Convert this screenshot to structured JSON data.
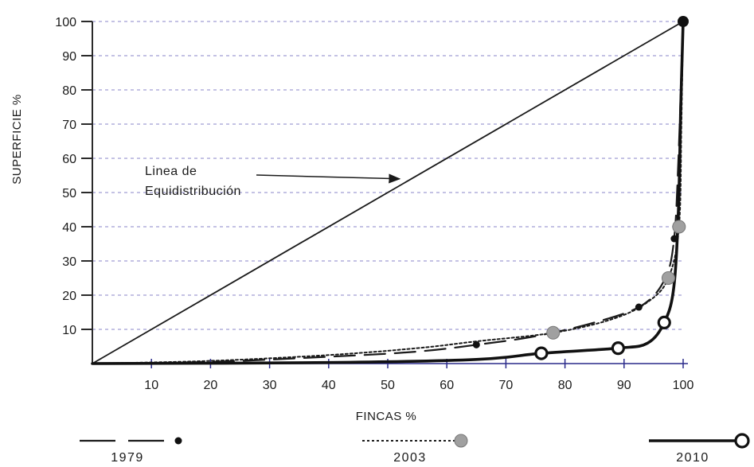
{
  "chart_data": {
    "type": "line",
    "title": "",
    "xlabel": "FINCAS %",
    "ylabel": "SUPERFICIE %",
    "xlim": [
      0,
      100
    ],
    "ylim": [
      0,
      100
    ],
    "x_ticks": [
      10,
      20,
      30,
      40,
      50,
      60,
      70,
      80,
      90,
      100
    ],
    "y_ticks": [
      10,
      20,
      30,
      40,
      50,
      60,
      70,
      80,
      90,
      100
    ],
    "grid": "horizontal dashed",
    "legend_position": "bottom",
    "annotation": {
      "lines": [
        "Linea de",
        "Equidistribución"
      ],
      "arrow_target": [
        52,
        54
      ]
    },
    "equidistribution": {
      "x": [
        0,
        100
      ],
      "y": [
        0,
        100
      ]
    },
    "series": [
      {
        "name": "1979",
        "style": "dash",
        "color": "#1a1a1a",
        "marker": "filled-dot",
        "x": [
          0,
          20,
          40,
          55,
          65,
          75,
          85,
          93,
          97,
          98.5,
          99.2,
          99.7,
          100
        ],
        "y": [
          0,
          0.5,
          2,
          3.5,
          5.5,
          8,
          12,
          17,
          25,
          37,
          60,
          85,
          100
        ],
        "markers_x": [
          65,
          92.5,
          98.5
        ],
        "markers_y": [
          5.5,
          16.5,
          36.5
        ]
      },
      {
        "name": "2003",
        "style": "dotted",
        "color": "#1a1a1a",
        "marker": "gray-dot",
        "x": [
          0,
          20,
          40,
          55,
          65,
          78,
          88,
          94,
          97.5,
          99.3,
          99.7,
          100
        ],
        "y": [
          0,
          0.8,
          2.5,
          4.5,
          6.5,
          9,
          13,
          18,
          25,
          40,
          70,
          100
        ],
        "markers_x": [
          78,
          97.5,
          99.3
        ],
        "markers_y": [
          9,
          25,
          40
        ],
        "marker_color": "#a0a0a0"
      },
      {
        "name": "2010",
        "style": "solid",
        "color": "#111111",
        "marker": "open-circle",
        "x": [
          0,
          40,
          65,
          76,
          89,
          94,
          96.8,
          98.4,
          99.2,
          99.6,
          100
        ],
        "y": [
          0,
          0.3,
          1.2,
          3,
          4.5,
          6,
          12,
          22,
          45,
          75,
          100
        ],
        "markers_x": [
          76,
          89,
          96.8,
          100
        ],
        "markers_y": [
          3,
          4.5,
          12,
          100
        ]
      }
    ]
  }
}
